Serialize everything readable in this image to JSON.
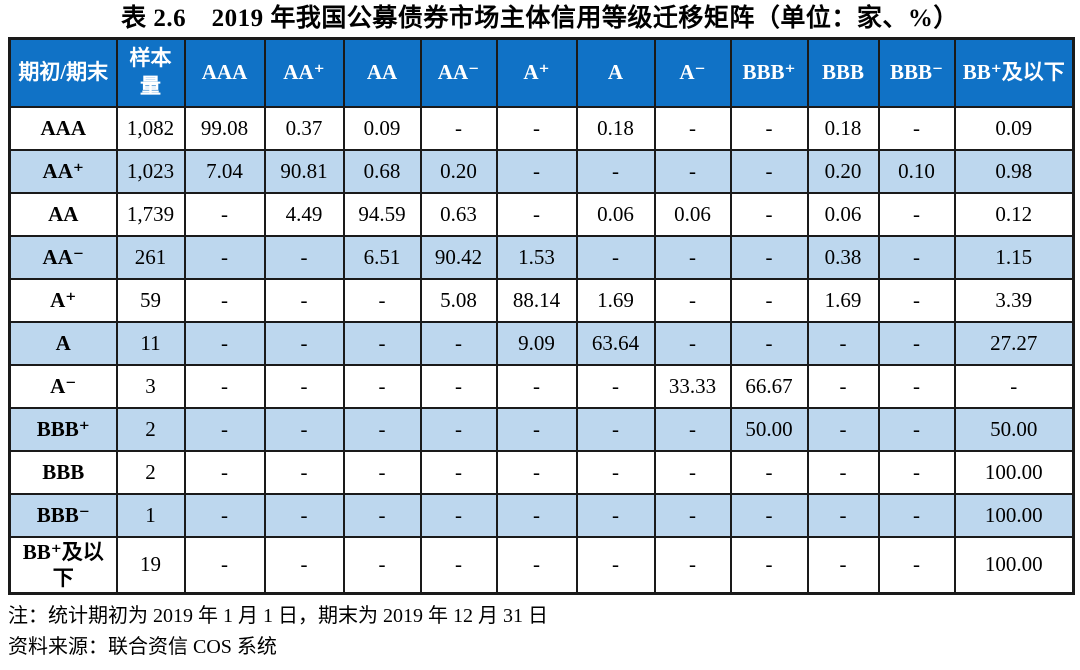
{
  "title": "表 2.6　2019 年我国公募债券市场主体信用等级迁移矩阵（单位：家、%）",
  "table": {
    "header": {
      "col0": "期初/期末",
      "col1": "样本量",
      "ratings": [
        "AAA",
        "AA⁺",
        "AA",
        "AA⁻",
        "A⁺",
        "A",
        "A⁻",
        "BBB⁺",
        "BBB",
        "BBB⁻",
        "BB⁺及以下"
      ]
    },
    "rows": [
      {
        "label": "AAA",
        "sample": "1,082",
        "values": [
          "99.08",
          "0.37",
          "0.09",
          "-",
          "-",
          "0.18",
          "-",
          "-",
          "0.18",
          "-",
          "0.09"
        ]
      },
      {
        "label": "AA⁺",
        "sample": "1,023",
        "values": [
          "7.04",
          "90.81",
          "0.68",
          "0.20",
          "-",
          "-",
          "-",
          "-",
          "0.20",
          "0.10",
          "0.98"
        ]
      },
      {
        "label": "AA",
        "sample": "1,739",
        "values": [
          "-",
          "4.49",
          "94.59",
          "0.63",
          "-",
          "0.06",
          "0.06",
          "-",
          "0.06",
          "-",
          "0.12"
        ]
      },
      {
        "label": "AA⁻",
        "sample": "261",
        "values": [
          "-",
          "-",
          "6.51",
          "90.42",
          "1.53",
          "-",
          "-",
          "-",
          "0.38",
          "-",
          "1.15"
        ]
      },
      {
        "label": "A⁺",
        "sample": "59",
        "values": [
          "-",
          "-",
          "-",
          "5.08",
          "88.14",
          "1.69",
          "-",
          "-",
          "1.69",
          "-",
          "3.39"
        ]
      },
      {
        "label": "A",
        "sample": "11",
        "values": [
          "-",
          "-",
          "-",
          "-",
          "9.09",
          "63.64",
          "-",
          "-",
          "-",
          "-",
          "27.27"
        ]
      },
      {
        "label": "A⁻",
        "sample": "3",
        "values": [
          "-",
          "-",
          "-",
          "-",
          "-",
          "-",
          "33.33",
          "66.67",
          "-",
          "-",
          "-"
        ]
      },
      {
        "label": "BBB⁺",
        "sample": "2",
        "values": [
          "-",
          "-",
          "-",
          "-",
          "-",
          "-",
          "-",
          "50.00",
          "-",
          "-",
          "50.00"
        ]
      },
      {
        "label": "BBB",
        "sample": "2",
        "values": [
          "-",
          "-",
          "-",
          "-",
          "-",
          "-",
          "-",
          "-",
          "-",
          "-",
          "100.00"
        ]
      },
      {
        "label": "BBB⁻",
        "sample": "1",
        "values": [
          "-",
          "-",
          "-",
          "-",
          "-",
          "-",
          "-",
          "-",
          "-",
          "-",
          "100.00"
        ]
      },
      {
        "label": "BB⁺及以下",
        "sample": "19",
        "values": [
          "-",
          "-",
          "-",
          "-",
          "-",
          "-",
          "-",
          "-",
          "-",
          "-",
          "100.00"
        ]
      }
    ]
  },
  "notes": {
    "period": "注：统计期初为 2019 年 1 月 1 日，期末为 2019 年 12 月 31 日",
    "source": "资料来源：联合资信 COS 系统"
  },
  "colors": {
    "header_bg": "#1072C6",
    "header_text": "#FFFFFF",
    "row_alt_bg": "#BDD7EE",
    "border": "#1A1A1A",
    "text": "#000000"
  }
}
